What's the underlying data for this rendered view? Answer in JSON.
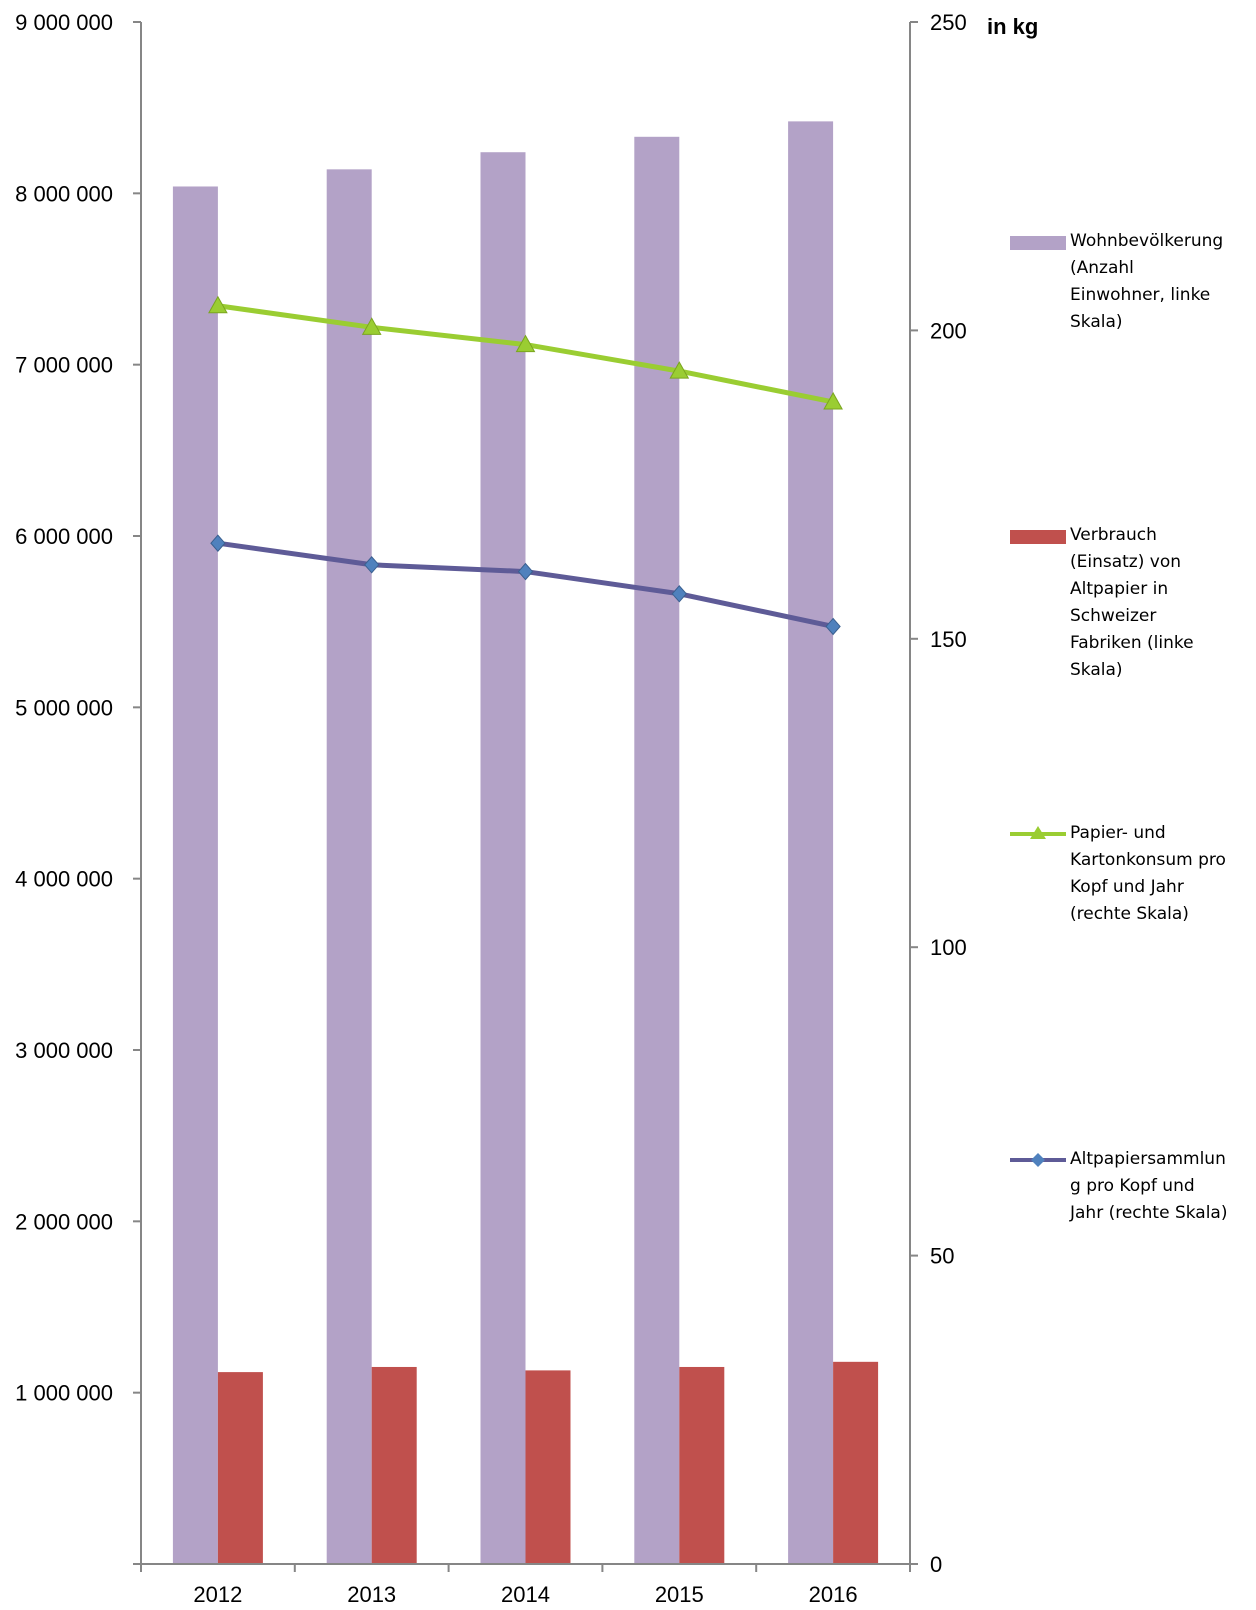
{
  "chart_data": {
    "type": "bar",
    "categories": [
      "2012",
      "2013",
      "2014",
      "2015",
      "2016"
    ],
    "left_axis": {
      "ylim": [
        0,
        9000000
      ],
      "ticks": [
        1000000,
        2000000,
        3000000,
        4000000,
        5000000,
        6000000,
        7000000,
        8000000,
        9000000
      ],
      "tick_labels": [
        "1 000 000",
        "2 000 000",
        "3 000 000",
        "4 000 000",
        "5 000 000",
        "6 000 000",
        "7 000 000",
        "8 000 000",
        "9 000 000"
      ]
    },
    "right_axis": {
      "ylabel": "in kg",
      "ylim": [
        0,
        250
      ],
      "ticks": [
        0,
        50,
        100,
        150,
        200,
        250
      ],
      "tick_labels": [
        "0",
        "50",
        "100",
        "150",
        "200",
        "250"
      ]
    },
    "series": [
      {
        "name": "Wohnbevölkerung (Anzahl Einwohner, linke Skala)",
        "type": "bar",
        "axis": "left",
        "color": "#b3a2c7",
        "values": [
          8040000,
          8140000,
          8240000,
          8330000,
          8420000
        ]
      },
      {
        "name": "Verbrauch (Einsatz) von Altpapier in Schweizer Fabriken (linke Skala)",
        "type": "bar",
        "axis": "left",
        "color": "#c0504d",
        "values": [
          1120000,
          1150000,
          1130000,
          1150000,
          1180000
        ]
      },
      {
        "name": "Papier- und Kartonkonsum pro Kopf und Jahr (rechte Skala)",
        "type": "line",
        "axis": "right",
        "color": "#9acd32",
        "marker": "triangle",
        "values": [
          204,
          200.5,
          197.7,
          193.4,
          188.4
        ]
      },
      {
        "name": "Altpapiersammlung pro Kopf und Jahr (rechte Skala)",
        "type": "line",
        "axis": "right",
        "color": "#5e5b97",
        "marker": "diamond",
        "values": [
          165.5,
          162,
          160.9,
          157.3,
          152
        ]
      }
    ],
    "legend_position": "right",
    "grid": false
  },
  "legend": {
    "items": [
      {
        "label": "Wohnbevölkerung\n(Anzahl\nEinwohner, linke\nSkala)",
        "color": "#b3a2c7",
        "kind": "box"
      },
      {
        "label": "Verbrauch\n(Einsatz) von\nAltpapier in\nSchweizer\nFabriken (linke\nSkala)",
        "color": "#c0504d",
        "kind": "box"
      },
      {
        "label": "Papier- und\nKartonkonsum pro\nKopf und Jahr\n(rechte Skala)",
        "color": "#9acd32",
        "kind": "line-triangle"
      },
      {
        "label": "Altpapiersammlun\ng pro Kopf und\nJahr (rechte Skala)",
        "color": "#5e5b97",
        "kind": "line-diamond"
      }
    ]
  }
}
